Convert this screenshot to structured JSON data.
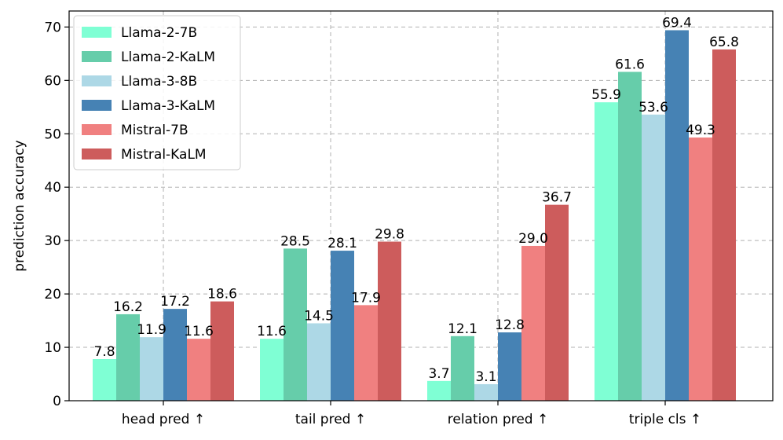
{
  "chart_data": {
    "type": "bar",
    "title": "",
    "xlabel": "",
    "ylabel": "prediction accuracy",
    "categories": [
      "head pred ↑",
      "tail pred ↑",
      "relation pred ↑",
      "triple cls ↑"
    ],
    "ylim": [
      0,
      73
    ],
    "yticks": [
      0,
      10,
      20,
      30,
      40,
      50,
      60,
      70
    ],
    "grid": true,
    "legend_position": "top-left",
    "series": [
      {
        "name": "Llama-2-7B",
        "color": "#7fffd4",
        "values": [
          7.8,
          11.6,
          3.7,
          55.9
        ],
        "labels": [
          "7.8",
          "11.6",
          "3.7",
          "55.9"
        ]
      },
      {
        "name": "Llama-2-KaLM",
        "color": "#66cdaa",
        "values": [
          16.2,
          28.5,
          12.1,
          61.6
        ],
        "labels": [
          "16.2",
          "28.5",
          "12.1",
          "61.6"
        ]
      },
      {
        "name": "Llama-3-8B",
        "color": "#add8e6",
        "values": [
          11.9,
          14.5,
          3.1,
          53.6
        ],
        "labels": [
          "11.9",
          "14.5",
          "3.1",
          "53.6"
        ]
      },
      {
        "name": "Llama-3-KaLM",
        "color": "#4682b4",
        "values": [
          17.2,
          28.1,
          12.8,
          69.4
        ],
        "labels": [
          "17.2",
          "28.1",
          "12.8",
          "69.4"
        ]
      },
      {
        "name": "Mistral-7B",
        "color": "#f08080",
        "values": [
          11.6,
          17.9,
          29.0,
          49.3
        ],
        "labels": [
          "11.6",
          "17.9",
          "29.0",
          "49.3"
        ]
      },
      {
        "name": "Mistral-KaLM",
        "color": "#cd5c5c",
        "values": [
          18.6,
          29.8,
          36.7,
          65.8
        ],
        "labels": [
          "18.6",
          "29.8",
          "36.7",
          "65.8"
        ]
      }
    ]
  }
}
